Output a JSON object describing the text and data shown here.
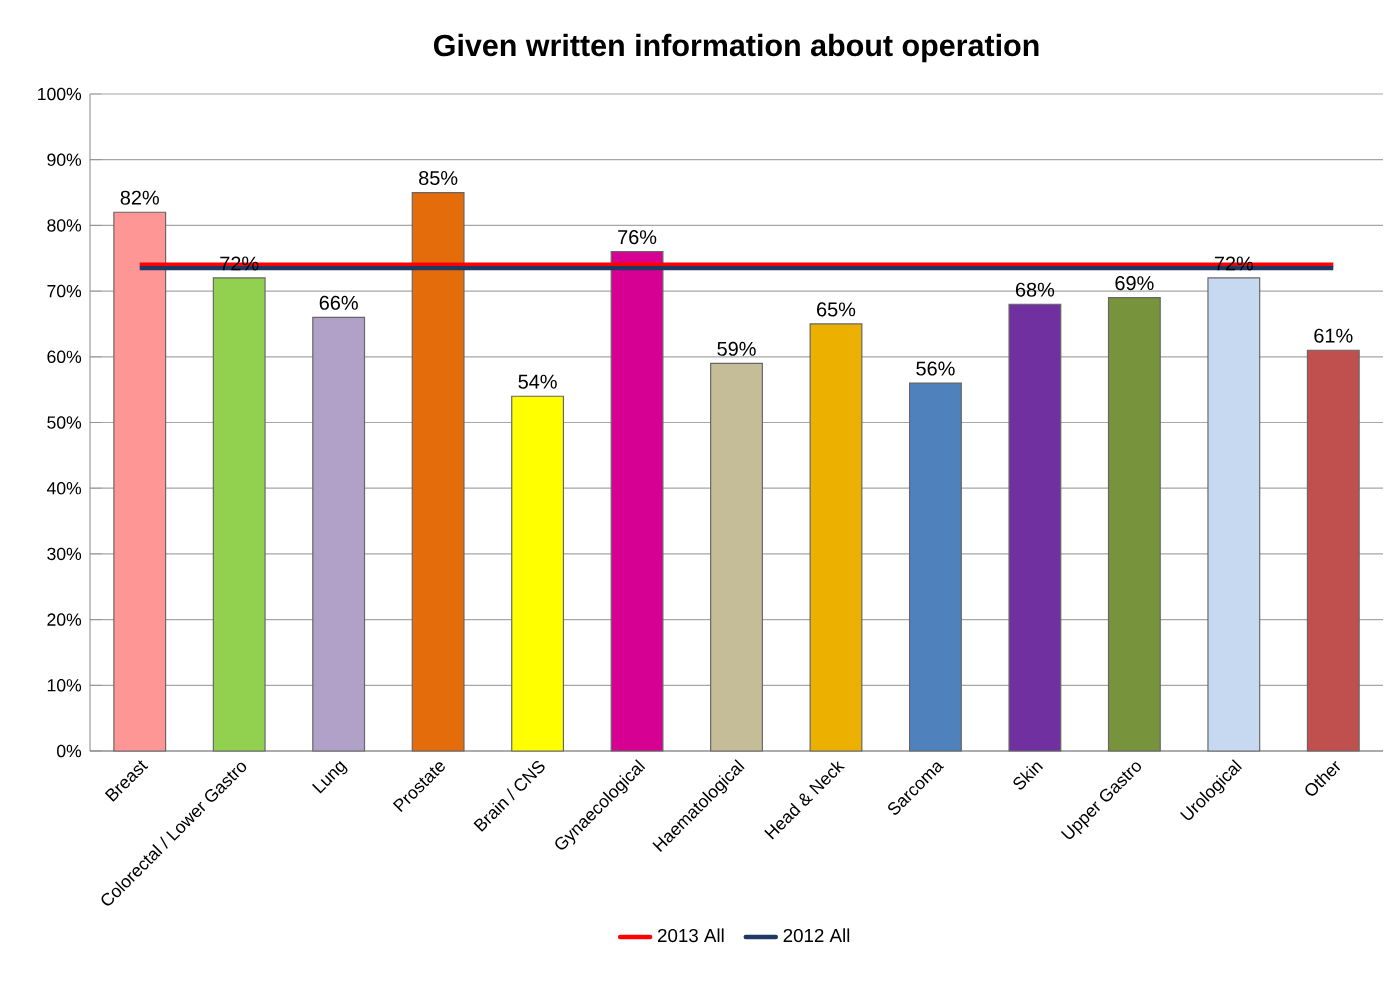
{
  "chart_data": {
    "type": "bar",
    "title": "Given written information about operation",
    "categories": [
      "Breast",
      "Colorectal / Lower Gastro",
      "Lung",
      "Prostate",
      "Brain / CNS",
      "Gynaecological",
      "Haematological",
      "Head & Neck",
      "Sarcoma",
      "Skin",
      "Upper Gastro",
      "Urological",
      "Other"
    ],
    "series": [
      {
        "values": [
          82,
          72,
          66,
          85,
          54,
          76,
          59,
          65,
          56,
          68,
          69,
          72,
          61
        ],
        "value_labels": [
          "82%",
          "72%",
          "66%",
          "85%",
          "54%",
          "76%",
          "59%",
          "65%",
          "56%",
          "68%",
          "69%",
          "72%",
          "61%"
        ],
        "colors": [
          "#ff9696",
          "#92d050",
          "#b1a0c7",
          "#e46c0a",
          "#ffff00",
          "#d60093",
          "#c4bd97",
          "#ebb000",
          "#4f81bd",
          "#7030a0",
          "#77933c",
          "#c6d9f1",
          "#c0504d"
        ]
      },
      {
        "type": "line",
        "name": "2013 All",
        "color": "#ff0000",
        "values": [
          74,
          74,
          74,
          74,
          74,
          74,
          74,
          74,
          74,
          74,
          74,
          74,
          74
        ]
      },
      {
        "type": "line",
        "name": "2012 All",
        "color": "#1f3864",
        "values": [
          73.5,
          73.5,
          73.5,
          73.5,
          73.5,
          73.5,
          73.5,
          73.5,
          73.5,
          73.5,
          73.5,
          73.5,
          73.5
        ]
      }
    ],
    "ylim": [
      0,
      100
    ],
    "yticks": [
      {
        "value": 0,
        "label": "0%"
      },
      {
        "value": 10,
        "label": "10%"
      },
      {
        "value": 20,
        "label": "20%"
      },
      {
        "value": 30,
        "label": "30%"
      },
      {
        "value": 40,
        "label": "40%"
      },
      {
        "value": 50,
        "label": "50%"
      },
      {
        "value": 60,
        "label": "60%"
      },
      {
        "value": 70,
        "label": "70%"
      },
      {
        "value": 80,
        "label": "80%"
      },
      {
        "value": 90,
        "label": "90%"
      },
      {
        "value": 100,
        "label": "100%"
      }
    ],
    "grid": "y",
    "legend": "bottom",
    "marker": "none"
  }
}
